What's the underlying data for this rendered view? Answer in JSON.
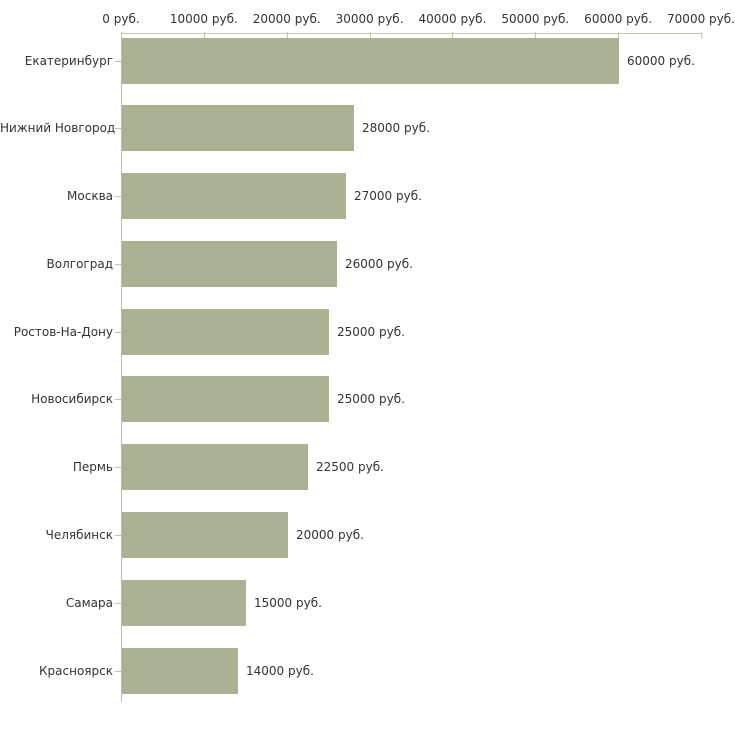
{
  "chart_data": {
    "type": "bar",
    "orientation": "horizontal",
    "title": "",
    "xlabel": "",
    "ylabel": "",
    "categories": [
      "Екатеринбург",
      "Нижний Новгород",
      "Москва",
      "Волгоград",
      "Ростов-На-Дону",
      "Новосибирск",
      "Пермь",
      "Челябинск",
      "Самара",
      "Красноярск"
    ],
    "values": [
      60000,
      28000,
      27000,
      26000,
      25000,
      25000,
      22500,
      20000,
      15000,
      14000
    ],
    "value_labels": [
      "60000 руб.",
      "28000 руб.",
      "27000 руб.",
      "26000 руб.",
      "25000 руб.",
      "25000 руб.",
      "22500 руб.",
      "20000 руб.",
      "15000 руб.",
      "14000 руб."
    ],
    "xlim": [
      0,
      70000
    ],
    "x_ticks": [
      0,
      10000,
      20000,
      30000,
      40000,
      50000,
      60000,
      70000
    ],
    "x_tick_labels": [
      "0 руб.",
      "10000 руб.",
      "20000 руб.",
      "30000 руб.",
      "40000 руб.",
      "50000 руб.",
      "60000 руб.",
      "70000 руб."
    ],
    "x_axis_position": "top",
    "grid": false,
    "legend": false,
    "bar_color": "#abb294",
    "axis_line_color": "#c6c6a8",
    "y_axis_line_color": "#b9b9b9",
    "tick_color": "#c3c3a2",
    "text_color": "#333333",
    "unit": "руб."
  }
}
